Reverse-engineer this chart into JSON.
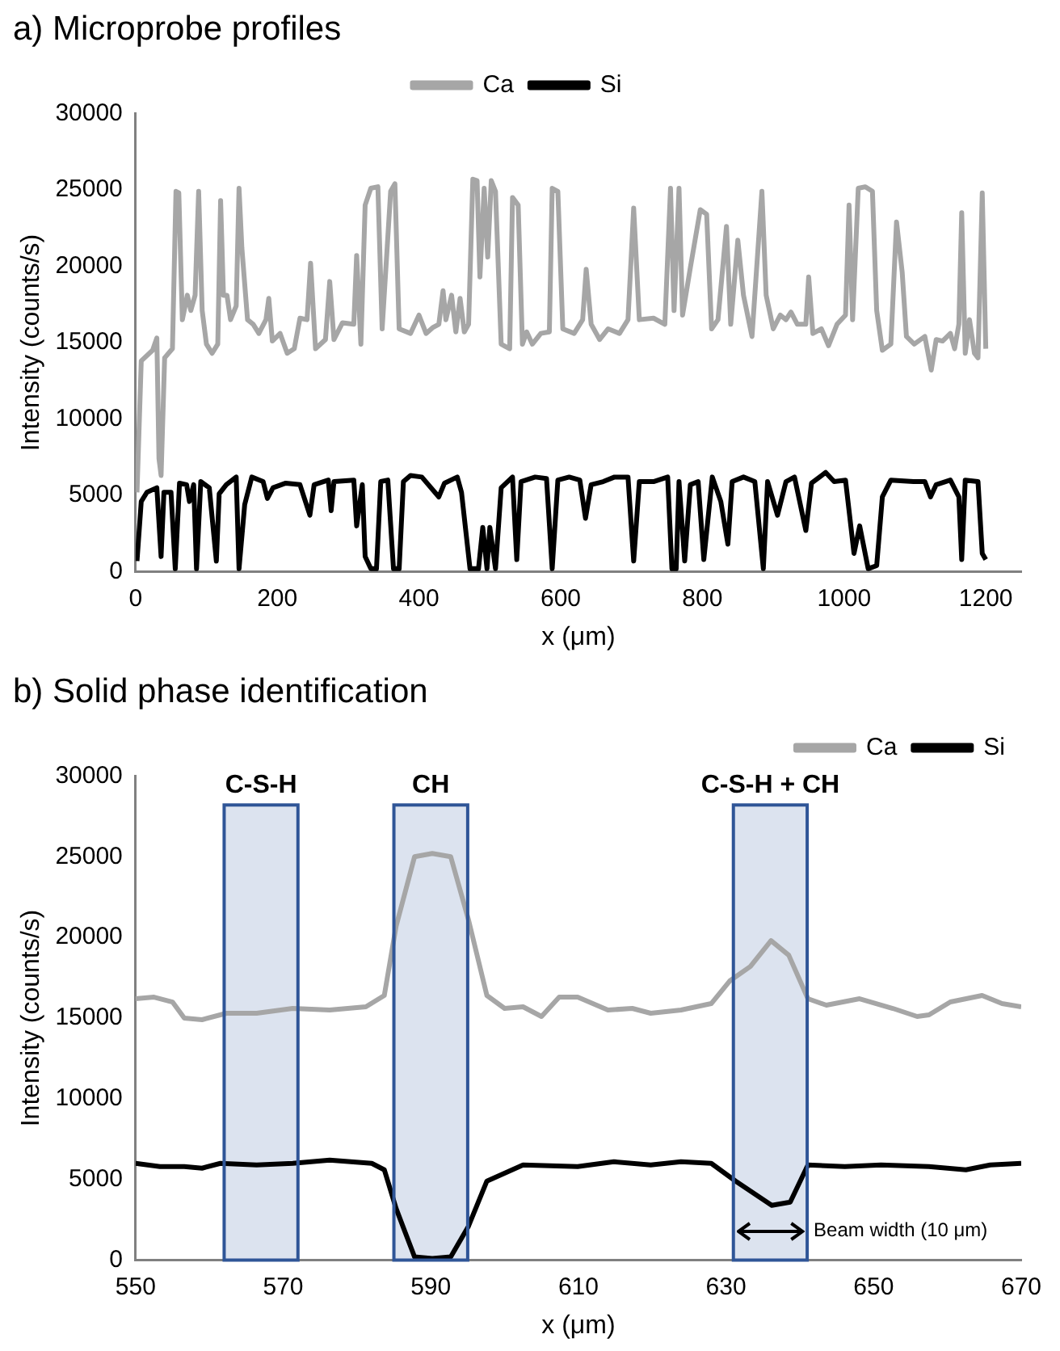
{
  "chart_data": [
    {
      "type": "line",
      "title": "a) Microprobe profiles",
      "xlabel": "x (μm)",
      "ylabel": "Intensity (counts/s)",
      "xlim": [
        0,
        1250
      ],
      "xticks": [
        0,
        200,
        400,
        600,
        800,
        1000,
        1200
      ],
      "ylim": [
        0,
        30000
      ],
      "yticks": [
        0,
        5000,
        10000,
        15000,
        20000,
        25000,
        30000
      ],
      "grid": false,
      "legend": "top",
      "marker": "none",
      "line_style": "solid",
      "series": [
        {
          "name": "Ca",
          "color": "#a6a6a6",
          "x": [
            2,
            8,
            24,
            30,
            33,
            36,
            41,
            52,
            57,
            61,
            66,
            73,
            78,
            84,
            89,
            94,
            100,
            108,
            116,
            120,
            124,
            129,
            134,
            142,
            146,
            150,
            158,
            166,
            174,
            184,
            188,
            193,
            204,
            214,
            224,
            232,
            242,
            247,
            254,
            268,
            274,
            280,
            292,
            308,
            312,
            318,
            324,
            332,
            342,
            348,
            360,
            366,
            372,
            388,
            400,
            410,
            420,
            428,
            434,
            438,
            446,
            452,
            458,
            464,
            470,
            476,
            482,
            486,
            492,
            497,
            502,
            508,
            516,
            520,
            528,
            532,
            540,
            546,
            552,
            560,
            572,
            584,
            588,
            596,
            603,
            619,
            631,
            636,
            643,
            655,
            667,
            683,
            695,
            703,
            711,
            731,
            747,
            755,
            760,
            767,
            772,
            783,
            797,
            806,
            813,
            822,
            834,
            840,
            850,
            858,
            870,
            884,
            890,
            900,
            910,
            918,
            925,
            934,
            946,
            950,
            956,
            968,
            978,
            990,
            1002,
            1007,
            1012,
            1020,
            1030,
            1040,
            1046,
            1054,
            1066,
            1074,
            1082,
            1088,
            1099,
            1114,
            1123,
            1130,
            1139,
            1150,
            1156,
            1162,
            1166,
            1171,
            1177,
            1184,
            1189,
            1195,
            1200
          ],
          "values": [
            5200,
            13800,
            14500,
            15300,
            7400,
            6300,
            14000,
            14600,
            24900,
            24800,
            16500,
            18100,
            17100,
            18100,
            24900,
            17100,
            14900,
            14300,
            14900,
            24300,
            18100,
            18100,
            16500,
            17400,
            25100,
            21200,
            16500,
            16200,
            15600,
            16500,
            17900,
            15100,
            15600,
            14300,
            14600,
            16600,
            16500,
            20200,
            14600,
            15200,
            19000,
            15200,
            16300,
            16200,
            20700,
            14900,
            24000,
            25100,
            25200,
            15900,
            24900,
            25400,
            15900,
            15600,
            16800,
            15600,
            16000,
            16200,
            18400,
            16500,
            18100,
            15700,
            17900,
            15700,
            16200,
            25700,
            25600,
            19300,
            25100,
            20600,
            25600,
            24900,
            14900,
            14800,
            14600,
            24500,
            24000,
            14900,
            15700,
            14900,
            15600,
            15700,
            25100,
            24900,
            15900,
            15600,
            16500,
            19800,
            16200,
            15200,
            15900,
            15600,
            16500,
            23800,
            16500,
            16600,
            16200,
            25100,
            17100,
            25100,
            16800,
            19900,
            23700,
            23400,
            15900,
            16500,
            22600,
            16200,
            21700,
            18100,
            15400,
            24900,
            18100,
            15900,
            16800,
            16500,
            17000,
            16200,
            16200,
            19300,
            15600,
            15900,
            14800,
            16200,
            16800,
            24000,
            16500,
            25100,
            25200,
            24900,
            17100,
            14500,
            14900,
            22900,
            19600,
            15400,
            14900,
            15400,
            13200,
            15200,
            15100,
            15600,
            14600,
            16200,
            23500,
            14300,
            16500,
            14300,
            14000,
            24800,
            14600
          ]
        },
        {
          "name": "Si",
          "color": "#000000",
          "x": [
            2,
            8,
            16,
            30,
            36,
            40,
            50,
            56,
            62,
            72,
            76,
            82,
            86,
            92,
            104,
            114,
            118,
            128,
            142,
            146,
            154,
            164,
            180,
            186,
            194,
            212,
            232,
            246,
            252,
            272,
            276,
            280,
            308,
            312,
            320,
            324,
            332,
            340,
            346,
            356,
            364,
            372,
            378,
            388,
            404,
            428,
            436,
            454,
            460,
            472,
            484,
            490,
            496,
            500,
            508,
            516,
            532,
            538,
            544,
            564,
            580,
            588,
            596,
            612,
            627,
            635,
            643,
            660,
            676,
            695,
            703,
            711,
            731,
            751,
            757,
            763,
            767,
            775,
            783,
            794,
            802,
            814,
            826,
            836,
            842,
            858,
            874,
            886,
            892,
            906,
            918,
            930,
            946,
            954,
            974,
            986,
            1002,
            1014,
            1022,
            1034,
            1046,
            1054,
            1066,
            1098,
            1114,
            1122,
            1130,
            1150,
            1162,
            1166,
            1171,
            1189,
            1195,
            1200
          ],
          "values": [
            700,
            4600,
            5200,
            5500,
            1000,
            5200,
            5200,
            200,
            5800,
            5700,
            4600,
            5700,
            200,
            5900,
            5500,
            700,
            5100,
            5700,
            6200,
            200,
            4400,
            6200,
            5900,
            4800,
            5500,
            5800,
            5700,
            3700,
            5700,
            6000,
            4000,
            5900,
            6000,
            3000,
            5700,
            1000,
            200,
            200,
            5900,
            6000,
            200,
            200,
            5900,
            6300,
            6200,
            4900,
            5800,
            6200,
            5200,
            200,
            200,
            2900,
            200,
            2900,
            200,
            5500,
            6200,
            800,
            5900,
            6200,
            6100,
            200,
            6000,
            6200,
            6000,
            3500,
            5700,
            5900,
            6200,
            6200,
            700,
            5900,
            5900,
            6200,
            200,
            200,
            5900,
            700,
            5700,
            5900,
            800,
            6200,
            4600,
            1800,
            5900,
            6200,
            5900,
            200,
            5900,
            3700,
            5900,
            6200,
            2700,
            5800,
            6500,
            5900,
            6000,
            1200,
            3000,
            200,
            400,
            4900,
            6000,
            5900,
            5900,
            4900,
            5700,
            6000,
            4900,
            800,
            6000,
            5900,
            1200,
            800
          ]
        }
      ]
    },
    {
      "type": "line",
      "title": "b) Solid phase identification",
      "xlabel": "x (μm)",
      "ylabel": "Intensity (counts/s)",
      "xlim": [
        550,
        670
      ],
      "xticks": [
        550,
        570,
        590,
        610,
        630,
        650,
        670
      ],
      "ylim": [
        0,
        30000
      ],
      "yticks": [
        0,
        5000,
        10000,
        15000,
        20000,
        25000,
        30000
      ],
      "grid": false,
      "legend": "top right",
      "marker": "none",
      "line_style": "solid",
      "bands": [
        {
          "axis": "x",
          "from": 562,
          "to": 572,
          "label": "C-S-H",
          "color": "#dce3ef"
        },
        {
          "axis": "x",
          "from": 585,
          "to": 595,
          "label": "CH",
          "color": "#dce3ef"
        },
        {
          "axis": "x",
          "from": 631,
          "to": 641,
          "label": "C-S-H + CH",
          "color": "#dce3ef"
        }
      ],
      "annotations": [
        {
          "text": "Beam width (10 μm)",
          "x": 641,
          "y": 1000
        }
      ],
      "series": [
        {
          "name": "Ca",
          "color": "#a6a6a6",
          "x": [
            550,
            552.5,
            555,
            556.6,
            559,
            562.3,
            566.4,
            571.3,
            576.3,
            581.2,
            583.7,
            585.3,
            587.8,
            590.2,
            592.7,
            595.1,
            597.6,
            600,
            602.5,
            605,
            607.4,
            609.9,
            614,
            617.3,
            619.8,
            623.9,
            628,
            630.5,
            633.3,
            636.1,
            638.5,
            641.1,
            643.6,
            648.1,
            652.6,
            655.9,
            657.5,
            660.4,
            664.7,
            667.4,
            670
          ],
          "values": [
            16200,
            16300,
            16000,
            15000,
            14900,
            15300,
            15300,
            15600,
            15500,
            15700,
            16400,
            20700,
            25000,
            25200,
            25000,
            21100,
            16400,
            15600,
            15700,
            15100,
            16300,
            16300,
            15500,
            15600,
            15300,
            15500,
            15900,
            17300,
            18200,
            19800,
            18900,
            16200,
            15800,
            16200,
            15600,
            15100,
            15200,
            16000,
            16400,
            15900,
            15700
          ]
        },
        {
          "name": "Si",
          "color": "#000000",
          "x": [
            550,
            553.3,
            556.6,
            559,
            561.5,
            566.4,
            571.3,
            576.3,
            582,
            583.7,
            585.3,
            587.8,
            590.2,
            592.7,
            595.1,
            597.6,
            602.5,
            609.9,
            614.8,
            619.8,
            623.9,
            628,
            631.3,
            636.2,
            638.7,
            641.1,
            646.1,
            651,
            657.5,
            662.5,
            665.8,
            670
          ],
          "values": [
            6000,
            5800,
            5800,
            5700,
            6000,
            5900,
            6000,
            6200,
            6000,
            5600,
            3200,
            200,
            100,
            200,
            2100,
            4900,
            5900,
            5800,
            6100,
            5900,
            6100,
            6000,
            4900,
            3400,
            3600,
            5900,
            5800,
            5900,
            5800,
            5600,
            5900,
            6000
          ]
        }
      ]
    }
  ]
}
